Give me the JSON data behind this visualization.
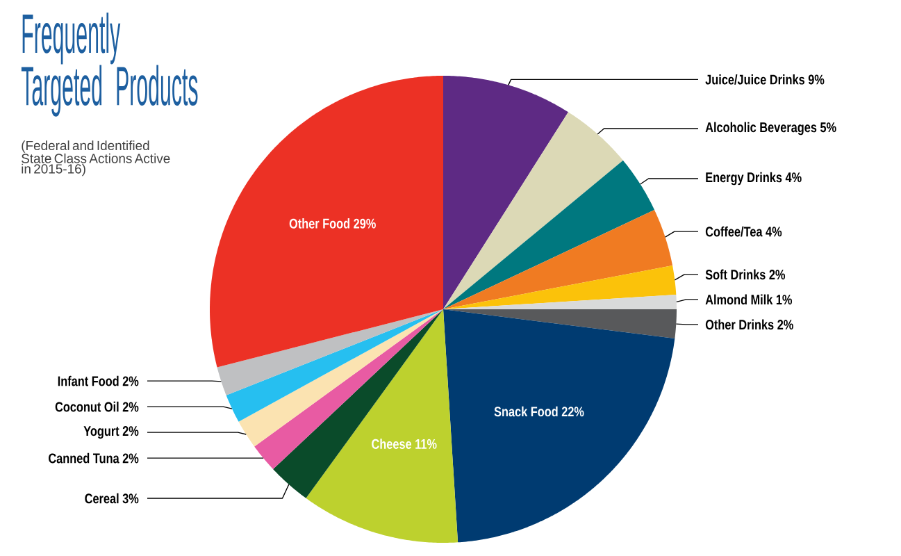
{
  "chart_data": {
    "type": "pie",
    "title": "Frequently Targeted Products",
    "subtitle": "(Federal and Identified State Class Actions Active in 2015-16)",
    "categories": [
      "Juice/Juice Drinks",
      "Alcoholic Beverages",
      "Energy Drinks",
      "Coffee/Tea",
      "Soft Drinks",
      "Almond Milk",
      "Other Drinks",
      "Snack Food",
      "Cheese",
      "Cereal",
      "Canned Tuna",
      "Yogurt",
      "Coconut Oil",
      "Infant Food",
      "Other Food"
    ],
    "values": [
      9,
      5,
      4,
      4,
      2,
      1,
      2,
      22,
      11,
      3,
      2,
      2,
      2,
      2,
      29
    ],
    "value_labels": [
      "9%",
      "5%",
      "4%",
      "4%",
      "2%",
      "1%",
      "2%",
      "22%",
      "11%",
      "3%",
      "2%",
      "2%",
      "2%",
      "2%",
      "29%"
    ],
    "colors": [
      "#5e2a84",
      "#dcd9b6",
      "#00787f",
      "#f07b22",
      "#fbc20a",
      "#d9dada",
      "#58595b",
      "#003b71",
      "#bdd12e",
      "#0a4b2a",
      "#e85ba3",
      "#fbe3b1",
      "#26bff0",
      "#bfc0c2",
      "#ec3125"
    ]
  }
}
